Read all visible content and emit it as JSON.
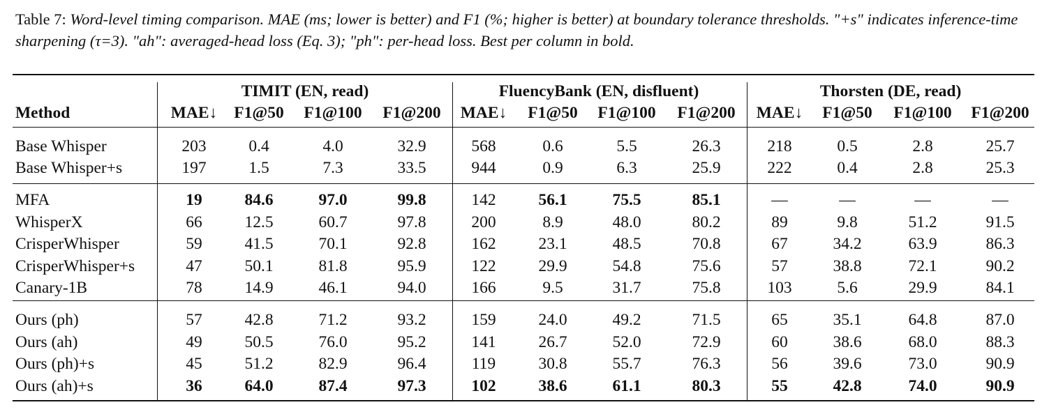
{
  "caption": {
    "label": "Table 7:",
    "text": "Word-level timing comparison. MAE (ms; lower is better) and F1 (%; higher is better) at boundary tolerance thresholds. \"+s\" indicates inference-time sharpening (τ=3). \"ah\": averaged-head loss (Eq. 3); \"ph\": per-head loss. Best per column in bold."
  },
  "table": {
    "method_header": "Method",
    "groups": [
      "TIMIT (EN, read)",
      "FluencyBank (EN, disfluent)",
      "Thorsten (DE, read)"
    ],
    "columns": [
      "MAE↓",
      "F1@50",
      "F1@100",
      "F1@200",
      "MAE↓",
      "F1@50",
      "F1@100",
      "F1@200",
      "MAE↓",
      "F1@50",
      "F1@100",
      "F1@200"
    ],
    "sections": [
      [
        {
          "method": "Base Whisper",
          "values": [
            "203",
            "0.4",
            "4.0",
            "32.9",
            "568",
            "0.6",
            "5.5",
            "26.3",
            "218",
            "0.5",
            "2.8",
            "25.7"
          ],
          "bold": []
        },
        {
          "method": "Base Whisper+s",
          "values": [
            "197",
            "1.5",
            "7.3",
            "33.5",
            "944",
            "0.9",
            "6.3",
            "25.9",
            "222",
            "0.4",
            "2.8",
            "25.3"
          ],
          "bold": []
        }
      ],
      [
        {
          "method": "MFA",
          "values": [
            "19",
            "84.6",
            "97.0",
            "99.8",
            "142",
            "56.1",
            "75.5",
            "85.1",
            "—",
            "—",
            "—",
            "—"
          ],
          "bold": [
            0,
            1,
            2,
            3,
            5,
            6,
            7
          ]
        },
        {
          "method": "WhisperX",
          "values": [
            "66",
            "12.5",
            "60.7",
            "97.8",
            "200",
            "8.9",
            "48.0",
            "80.2",
            "89",
            "9.8",
            "51.2",
            "91.5"
          ],
          "bold": []
        },
        {
          "method": "CrisperWhisper",
          "values": [
            "59",
            "41.5",
            "70.1",
            "92.8",
            "162",
            "23.1",
            "48.5",
            "70.8",
            "67",
            "34.2",
            "63.9",
            "86.3"
          ],
          "bold": []
        },
        {
          "method": "CrisperWhisper+s",
          "values": [
            "47",
            "50.1",
            "81.8",
            "95.9",
            "122",
            "29.9",
            "54.8",
            "75.6",
            "57",
            "38.8",
            "72.1",
            "90.2"
          ],
          "bold": []
        },
        {
          "method": "Canary-1B",
          "values": [
            "78",
            "14.9",
            "46.1",
            "94.0",
            "166",
            "9.5",
            "31.7",
            "75.8",
            "103",
            "5.6",
            "29.9",
            "84.1"
          ],
          "bold": []
        }
      ],
      [
        {
          "method": "Ours (ph)",
          "values": [
            "57",
            "42.8",
            "71.2",
            "93.2",
            "159",
            "24.0",
            "49.2",
            "71.5",
            "65",
            "35.1",
            "64.8",
            "87.0"
          ],
          "bold": []
        },
        {
          "method": "Ours (ah)",
          "values": [
            "49",
            "50.5",
            "76.0",
            "95.2",
            "141",
            "26.7",
            "52.0",
            "72.9",
            "60",
            "38.6",
            "68.0",
            "88.3"
          ],
          "bold": []
        },
        {
          "method": "Ours (ph)+s",
          "values": [
            "45",
            "51.2",
            "82.9",
            "96.4",
            "119",
            "30.8",
            "55.7",
            "76.3",
            "56",
            "39.6",
            "73.0",
            "90.9"
          ],
          "bold": []
        },
        {
          "method": "Ours (ah)+s",
          "values": [
            "36",
            "64.0",
            "87.4",
            "97.3",
            "102",
            "38.6",
            "61.1",
            "80.3",
            "55",
            "42.8",
            "74.0",
            "90.9"
          ],
          "bold": [
            0,
            1,
            2,
            3,
            4,
            5,
            6,
            7,
            8,
            9,
            10,
            11
          ]
        }
      ]
    ]
  }
}
